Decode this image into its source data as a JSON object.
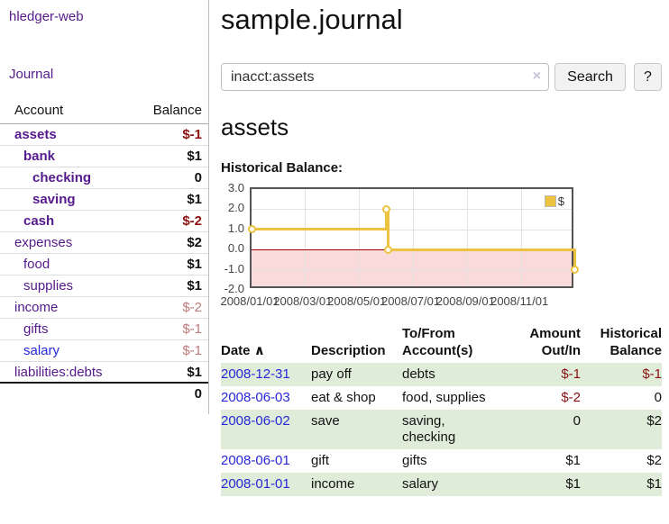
{
  "sidebar": {
    "title": "hledger-web",
    "nav_journal": "Journal",
    "accounts_table": {
      "header_account": "Account",
      "header_balance": "Balance",
      "rows": [
        {
          "name": "assets",
          "balance": "$-1",
          "depth": 0,
          "bold": true,
          "negative": true
        },
        {
          "name": "bank",
          "balance": "$1",
          "depth": 1,
          "bold": true,
          "negative": false
        },
        {
          "name": "checking",
          "balance": "0",
          "depth": 2,
          "bold": true,
          "negative": false
        },
        {
          "name": "saving",
          "balance": "$1",
          "depth": 2,
          "bold": true,
          "negative": false
        },
        {
          "name": "cash",
          "balance": "$-2",
          "depth": 1,
          "bold": true,
          "negative": true
        },
        {
          "name": "expenses",
          "balance": "$2",
          "depth": 0,
          "bold": false,
          "negative": false
        },
        {
          "name": "food",
          "balance": "$1",
          "depth": 1,
          "bold": false,
          "negative": false
        },
        {
          "name": "supplies",
          "balance": "$1",
          "depth": 1,
          "bold": false,
          "negative": false
        },
        {
          "name": "income",
          "balance": "$-2",
          "depth": 0,
          "bold": false,
          "negative": true
        },
        {
          "name": "gifts",
          "balance": "$-1",
          "depth": 1,
          "bold": false,
          "negative": true
        },
        {
          "name": "salary",
          "balance": "$-1",
          "depth": 1,
          "bold": false,
          "negative": true,
          "link_style": "blue"
        },
        {
          "name": "liabilities:debts",
          "balance": "$1",
          "depth": 0,
          "bold": false,
          "negative": false
        }
      ],
      "total": "0"
    }
  },
  "header": {
    "title": "sample.journal"
  },
  "search": {
    "value": "inacct:assets",
    "clear_icon": "×",
    "button_label": "Search",
    "help_label": "?"
  },
  "account_page": {
    "title": "assets",
    "chart_section_label": "Historical Balance:"
  },
  "chart_data": {
    "type": "line",
    "style": "step",
    "title": "Historical Balance",
    "series": [
      {
        "name": "$",
        "color": "#edc240",
        "points": [
          [
            "2008-01-01",
            1
          ],
          [
            "2008-06-01",
            2
          ],
          [
            "2008-06-03",
            0
          ],
          [
            "2008-12-31",
            -1
          ]
        ]
      }
    ],
    "ylim": [
      -2,
      3
    ],
    "yticks": [
      "3.0",
      "2.0",
      "1.0",
      "0.0",
      "-1.0",
      "-2.0"
    ],
    "xticks": [
      {
        "date": "2008-01-01",
        "label": "2008/01/01"
      },
      {
        "date": "2008-03-01",
        "label": "2008/03/01"
      },
      {
        "date": "2008-05-01",
        "label": "2008/05/01"
      },
      {
        "date": "2008-07-01",
        "label": "2008/07/01"
      },
      {
        "date": "2008-09-01",
        "label": "2008/09/01"
      },
      {
        "date": "2008-11-01",
        "label": "2008/11/01"
      }
    ],
    "x_domain": [
      "2008-01-01",
      "2009-01-01"
    ],
    "grid": true,
    "legend_position": "top-right",
    "negative_region_color": "#fadbdb",
    "zero_line_color": "#a20000"
  },
  "register": {
    "headers": {
      "date": "Date",
      "sort_icon": "∧",
      "description": "Description",
      "accounts": "To/From Account(s)",
      "amount": "Amount Out/In",
      "balance": "Historical Balance"
    },
    "rows": [
      {
        "date": "2008-12-31",
        "description": "pay off",
        "accounts": "debts",
        "amount": "$-1",
        "amount_negative": true,
        "balance": "$-1",
        "balance_negative": true
      },
      {
        "date": "2008-06-03",
        "description": "eat & shop",
        "accounts": "food, supplies",
        "amount": "$-2",
        "amount_negative": true,
        "balance": "0",
        "balance_negative": false
      },
      {
        "date": "2008-06-02",
        "description": "save",
        "accounts": "saving,\nchecking",
        "amount": "0",
        "amount_negative": false,
        "balance": "$2",
        "balance_negative": false
      },
      {
        "date": "2008-06-01",
        "description": "gift",
        "accounts": "gifts",
        "amount": "$1",
        "amount_negative": false,
        "balance": "$2",
        "balance_negative": false
      },
      {
        "date": "2008-01-01",
        "description": "income",
        "accounts": "salary",
        "amount": "$1",
        "amount_negative": false,
        "balance": "$1",
        "balance_negative": false
      }
    ]
  }
}
